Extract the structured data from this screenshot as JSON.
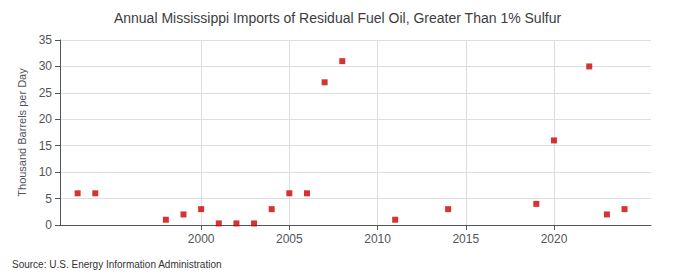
{
  "chart_data": {
    "type": "scatter",
    "title": "Annual Mississippi Imports of Residual Fuel Oil, Greater Than 1% Sulfur",
    "ylabel": "Thousand Barrels per Day",
    "annotations": [
      "Source: U.S. Energy Information Administration"
    ],
    "x": [
      1993,
      1994,
      1998,
      1999,
      2000,
      2001,
      2002,
      2003,
      2004,
      2005,
      2006,
      2007,
      2008,
      2011,
      2014,
      2019,
      2020,
      2022,
      2023,
      2024
    ],
    "values": [
      6,
      6,
      1,
      2,
      3,
      0.3,
      0.3,
      0.3,
      3,
      6,
      6,
      27,
      31,
      1,
      3,
      4,
      16,
      30,
      2,
      3
    ],
    "color": "#cc0000",
    "marker": "square",
    "xlim": [
      1992,
      2025.5
    ],
    "xticks": [
      2000,
      2005,
      2010,
      2015,
      2020
    ],
    "ylim": [
      0,
      35
    ],
    "yticks": [
      0,
      5,
      10,
      15,
      20,
      25,
      30,
      35
    ],
    "grid": true
  }
}
